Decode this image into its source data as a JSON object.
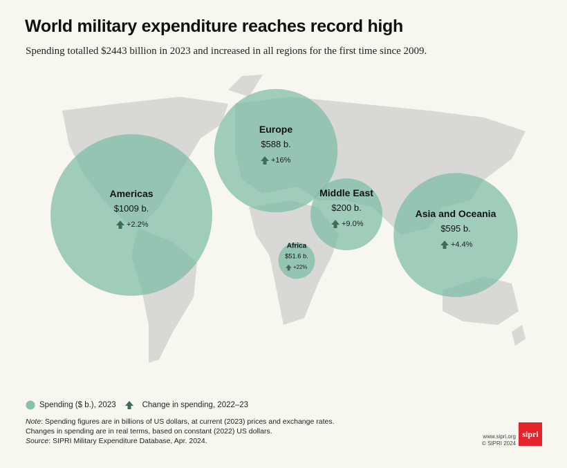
{
  "header": {
    "title": "World military expenditure reaches record high",
    "subtitle": "Spending totalled $2443 billion in 2023 and increased in all regions for the first time since 2009."
  },
  "regions": [
    {
      "name": "Americas",
      "spending": 1009,
      "spending_label": "$1009 b.",
      "change": 2.2,
      "change_label": "+2.2%"
    },
    {
      "name": "Europe",
      "spending": 588,
      "spending_label": "$588 b.",
      "change": 16,
      "change_label": "+16%"
    },
    {
      "name": "Middle East",
      "spending": 200,
      "spending_label": "$200 b.",
      "change": 9.0,
      "change_label": "+9.0%"
    },
    {
      "name": "Africa",
      "spending": 51.6,
      "spending_label": "$51.6 b.",
      "change": 22,
      "change_label": "+22%"
    },
    {
      "name": "Asia and Oceania",
      "spending": 595,
      "spending_label": "$595 b.",
      "change": 4.4,
      "change_label": "+4.4%"
    }
  ],
  "legend": {
    "spending": "Spending ($ b.), 2023",
    "change": "Change in spending, 2022–23"
  },
  "notes": [
    {
      "em": "Note",
      "text": ": Spending figures are in billions of US dollars, at current (2023) prices and exchange rates."
    },
    {
      "text": "Changes in spending are in real terms, based on constant (2022) US dollars."
    },
    {
      "em": "Source",
      "text": ": SIPRI Military Expenditure Database, Apr. 2024."
    }
  ],
  "footer": {
    "url": "www.sipri.org",
    "copyright": "© SIPRI 2024",
    "logo": "sipri"
  }
}
